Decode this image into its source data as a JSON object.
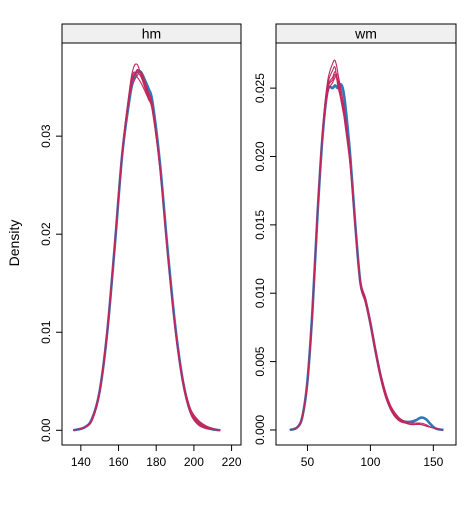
{
  "figure": {
    "ylabel": "Density"
  },
  "chart_data": [
    {
      "type": "line",
      "panel": "hm",
      "title": "hm",
      "xlabel": "",
      "ylabel": "Density",
      "xlim": [
        130,
        225
      ],
      "ylim": [
        -0.0015,
        0.0395
      ],
      "xticks": [
        140,
        160,
        180,
        200,
        220
      ],
      "yticks": [
        0.0,
        0.01,
        0.02,
        0.03
      ],
      "ytick_labels": [
        "0.00",
        "0.01",
        "0.02",
        "0.03"
      ],
      "observed_color": "#2d7ab8",
      "imputed_color": "#c0275d",
      "series": [
        {
          "role": "observed",
          "x": [
            136,
            142,
            146,
            150,
            154,
            158,
            162,
            166,
            168,
            170,
            172,
            174,
            176,
            178,
            182,
            186,
            190,
            194,
            198,
            202,
            206,
            210,
            214
          ],
          "values": [
            0.0,
            0.0003,
            0.0012,
            0.004,
            0.01,
            0.0188,
            0.0282,
            0.034,
            0.0358,
            0.0366,
            0.0365,
            0.0357,
            0.0348,
            0.0335,
            0.0272,
            0.0185,
            0.0108,
            0.0052,
            0.002,
            0.0008,
            0.0003,
            0.0001,
            0.0
          ]
        },
        {
          "role": "imputed",
          "x": [
            136,
            142,
            146,
            150,
            154,
            158,
            162,
            166,
            168,
            170,
            172,
            174,
            176,
            178,
            182,
            186,
            190,
            194,
            198,
            202,
            206,
            210,
            214
          ],
          "values": [
            0.0,
            0.0003,
            0.0011,
            0.004,
            0.0101,
            0.019,
            0.0285,
            0.035,
            0.037,
            0.0373,
            0.0362,
            0.0352,
            0.034,
            0.0328,
            0.0268,
            0.0182,
            0.0105,
            0.005,
            0.0019,
            0.0007,
            0.0002,
            0.0001,
            0.0
          ]
        },
        {
          "role": "imputed",
          "x": [
            136,
            142,
            146,
            150,
            154,
            158,
            162,
            166,
            168,
            170,
            172,
            174,
            176,
            178,
            182,
            186,
            190,
            194,
            198,
            202,
            206,
            210,
            214
          ],
          "values": [
            0.0,
            0.0003,
            0.0012,
            0.0042,
            0.0104,
            0.0192,
            0.0282,
            0.0345,
            0.0362,
            0.0365,
            0.036,
            0.0349,
            0.0338,
            0.0325,
            0.0265,
            0.018,
            0.0107,
            0.0054,
            0.0023,
            0.0011,
            0.0005,
            0.0002,
            0.0
          ]
        },
        {
          "role": "imputed",
          "x": [
            136,
            142,
            146,
            150,
            154,
            158,
            162,
            166,
            168,
            170,
            172,
            174,
            176,
            178,
            182,
            186,
            190,
            194,
            198,
            202,
            206,
            210,
            214
          ],
          "values": [
            0.0,
            0.0003,
            0.001,
            0.0038,
            0.0098,
            0.0187,
            0.028,
            0.0342,
            0.0355,
            0.0362,
            0.0366,
            0.0356,
            0.0344,
            0.0332,
            0.027,
            0.0184,
            0.0104,
            0.0049,
            0.0018,
            0.0006,
            0.0002,
            0.0001,
            0.0
          ]
        },
        {
          "role": "imputed",
          "x": [
            136,
            142,
            146,
            150,
            154,
            158,
            162,
            166,
            168,
            170,
            172,
            174,
            176,
            178,
            182,
            186,
            190,
            194,
            198,
            202,
            206,
            210,
            214
          ],
          "values": [
            0.0,
            0.0003,
            0.0012,
            0.0041,
            0.0102,
            0.0191,
            0.0287,
            0.0348,
            0.0365,
            0.036,
            0.0354,
            0.0346,
            0.0337,
            0.0326,
            0.0267,
            0.0183,
            0.0106,
            0.0051,
            0.0021,
            0.001,
            0.0004,
            0.0001,
            0.0
          ]
        },
        {
          "role": "imputed",
          "x": [
            136,
            142,
            146,
            150,
            154,
            158,
            162,
            166,
            168,
            170,
            172,
            174,
            176,
            178,
            182,
            186,
            190,
            194,
            198,
            202,
            206,
            210,
            214
          ],
          "values": [
            0.0,
            0.0003,
            0.0011,
            0.0039,
            0.0099,
            0.0189,
            0.0283,
            0.0346,
            0.036,
            0.0368,
            0.0363,
            0.0354,
            0.0342,
            0.033,
            0.0269,
            0.0181,
            0.0103,
            0.005,
            0.002,
            0.0009,
            0.0003,
            0.0001,
            0.0
          ]
        }
      ]
    },
    {
      "type": "line",
      "panel": "wm",
      "title": "wm",
      "xlabel": "",
      "ylabel": "",
      "xlim": [
        25,
        168
      ],
      "ylim": [
        -0.0011,
        0.0283
      ],
      "xticks": [
        50,
        100,
        150
      ],
      "yticks": [
        0.0,
        0.005,
        0.01,
        0.015,
        0.02,
        0.025
      ],
      "ytick_labels": [
        "0.000",
        "0.005",
        "0.010",
        "0.015",
        "0.020",
        "0.025"
      ],
      "observed_color": "#2d7ab8",
      "imputed_color": "#c0275d",
      "series": [
        {
          "role": "observed",
          "x": [
            36,
            42,
            46,
            50,
            54,
            58,
            62,
            66,
            70,
            72,
            74,
            76,
            78,
            80,
            84,
            88,
            92,
            96,
            100,
            104,
            108,
            112,
            116,
            120,
            124,
            128,
            132,
            136,
            140,
            144,
            148,
            152,
            158
          ],
          "values": [
            0.0,
            0.0002,
            0.001,
            0.0036,
            0.0088,
            0.0158,
            0.0215,
            0.0248,
            0.025,
            0.0252,
            0.025,
            0.0253,
            0.025,
            0.0238,
            0.02,
            0.015,
            0.0108,
            0.0095,
            0.0078,
            0.0058,
            0.004,
            0.0026,
            0.0016,
            0.001,
            0.0007,
            0.0006,
            0.0006,
            0.0007,
            0.0009,
            0.0008,
            0.0004,
            0.0001,
            0.0
          ]
        },
        {
          "role": "imputed",
          "x": [
            36,
            42,
            46,
            50,
            54,
            58,
            62,
            66,
            70,
            72,
            74,
            76,
            78,
            80,
            84,
            88,
            92,
            96,
            100,
            104,
            108,
            112,
            116,
            120,
            124,
            128,
            132,
            136,
            140,
            144,
            148,
            152,
            158
          ],
          "values": [
            0.0,
            0.0002,
            0.001,
            0.0035,
            0.0086,
            0.016,
            0.022,
            0.0255,
            0.0268,
            0.027,
            0.0262,
            0.0248,
            0.0236,
            0.0222,
            0.0192,
            0.0146,
            0.0106,
            0.0093,
            0.0076,
            0.0056,
            0.0038,
            0.0024,
            0.0015,
            0.0009,
            0.0006,
            0.0005,
            0.0004,
            0.0004,
            0.0004,
            0.0003,
            0.0002,
            0.0001,
            0.0
          ]
        },
        {
          "role": "imputed",
          "x": [
            36,
            42,
            46,
            50,
            54,
            58,
            62,
            66,
            70,
            72,
            74,
            76,
            78,
            80,
            84,
            88,
            92,
            96,
            100,
            104,
            108,
            112,
            116,
            120,
            124,
            128,
            132,
            136,
            140,
            144,
            148,
            152,
            158
          ],
          "values": [
            0.0,
            0.0002,
            0.0011,
            0.0037,
            0.009,
            0.0162,
            0.0218,
            0.025,
            0.0258,
            0.0262,
            0.0256,
            0.0246,
            0.0238,
            0.0226,
            0.0195,
            0.0149,
            0.0109,
            0.0096,
            0.0079,
            0.0059,
            0.0041,
            0.0027,
            0.0017,
            0.0011,
            0.0008,
            0.0006,
            0.0005,
            0.0005,
            0.0005,
            0.0004,
            0.0002,
            0.0001,
            0.0
          ]
        },
        {
          "role": "imputed",
          "x": [
            36,
            42,
            46,
            50,
            54,
            58,
            62,
            66,
            70,
            72,
            74,
            76,
            78,
            80,
            84,
            88,
            92,
            96,
            100,
            104,
            108,
            112,
            116,
            120,
            124,
            128,
            132,
            136,
            140,
            144,
            148,
            152,
            158
          ],
          "values": [
            0.0,
            0.0002,
            0.0009,
            0.0034,
            0.0085,
            0.0156,
            0.0214,
            0.0246,
            0.0254,
            0.0258,
            0.026,
            0.0252,
            0.0242,
            0.023,
            0.0198,
            0.0151,
            0.011,
            0.0097,
            0.008,
            0.006,
            0.0042,
            0.0028,
            0.0018,
            0.0012,
            0.0008,
            0.0006,
            0.0005,
            0.0005,
            0.0004,
            0.0003,
            0.0002,
            0.0001,
            0.0
          ]
        },
        {
          "role": "imputed",
          "x": [
            36,
            42,
            46,
            50,
            54,
            58,
            62,
            66,
            70,
            72,
            74,
            76,
            78,
            80,
            84,
            88,
            92,
            96,
            100,
            104,
            108,
            112,
            116,
            120,
            124,
            128,
            132,
            136,
            140,
            144,
            148,
            152,
            158
          ],
          "values": [
            0.0,
            0.0002,
            0.001,
            0.0036,
            0.0089,
            0.0161,
            0.0219,
            0.0252,
            0.0263,
            0.0265,
            0.0252,
            0.0244,
            0.0234,
            0.0224,
            0.0194,
            0.0147,
            0.0107,
            0.0094,
            0.0077,
            0.0057,
            0.0039,
            0.0025,
            0.0016,
            0.001,
            0.0007,
            0.0005,
            0.0004,
            0.0004,
            0.0004,
            0.0003,
            0.0002,
            0.0001,
            0.0
          ]
        },
        {
          "role": "imputed",
          "x": [
            36,
            42,
            46,
            50,
            54,
            58,
            62,
            66,
            70,
            72,
            74,
            76,
            78,
            80,
            84,
            88,
            92,
            96,
            100,
            104,
            108,
            112,
            116,
            120,
            124,
            128,
            132,
            136,
            140,
            144,
            148,
            152,
            158
          ],
          "values": [
            0.0,
            0.0002,
            0.001,
            0.0036,
            0.0087,
            0.0159,
            0.0217,
            0.0249,
            0.0256,
            0.026,
            0.0254,
            0.0245,
            0.0238,
            0.0226,
            0.0194,
            0.0148,
            0.0108,
            0.0095,
            0.0078,
            0.0058,
            0.004,
            0.0026,
            0.0016,
            0.001,
            0.0007,
            0.0005,
            0.0005,
            0.0005,
            0.0004,
            0.0003,
            0.0002,
            0.0001,
            0.0
          ]
        }
      ]
    }
  ]
}
